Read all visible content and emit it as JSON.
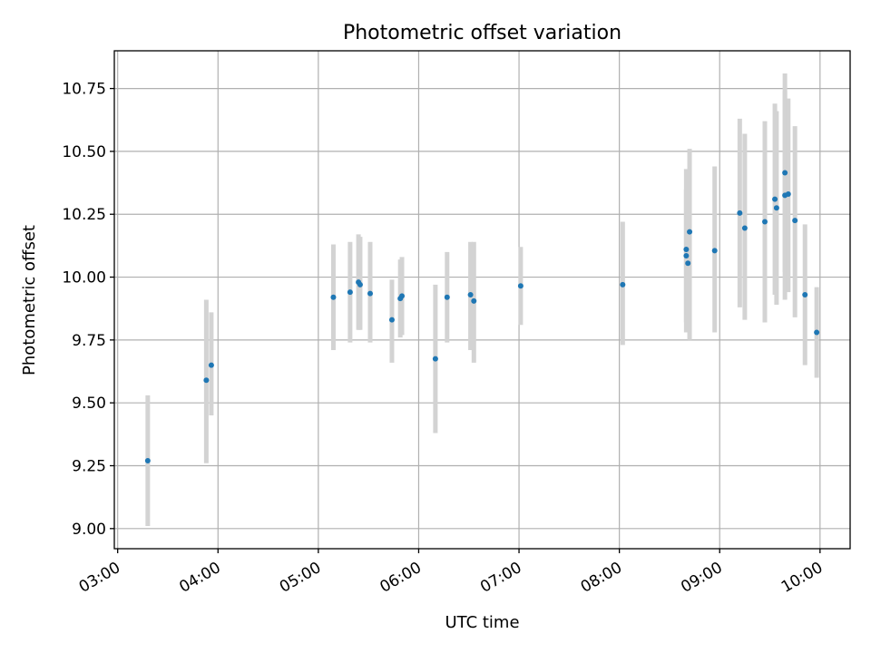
{
  "chart_data": {
    "type": "scatter",
    "title": "Photometric offset variation",
    "xlabel": "UTC time",
    "ylabel": "Photometric offset",
    "xlim": [
      "02:58",
      "10:18"
    ],
    "ylim": [
      8.92,
      10.9
    ],
    "x_ticks": [
      "03:00",
      "04:00",
      "05:00",
      "06:00",
      "07:00",
      "08:00",
      "09:00",
      "10:00"
    ],
    "y_ticks": [
      "9.00",
      "9.25",
      "9.50",
      "9.75",
      "10.00",
      "10.25",
      "10.50",
      "10.75"
    ],
    "grid": true,
    "colors": {
      "point": "#1f77b4",
      "errorbar": "#d3d3d3",
      "grid": "#b0b0b0"
    },
    "points": [
      {
        "x": "03:18",
        "y": 9.27,
        "ylow": 9.01,
        "yhigh": 9.53
      },
      {
        "x": "03:53",
        "y": 9.59,
        "ylow": 9.26,
        "yhigh": 9.91
      },
      {
        "x": "03:56",
        "y": 9.65,
        "ylow": 9.45,
        "yhigh": 9.86
      },
      {
        "x": "05:09",
        "y": 9.92,
        "ylow": 9.71,
        "yhigh": 10.13
      },
      {
        "x": "05:19",
        "y": 9.94,
        "ylow": 9.74,
        "yhigh": 10.14
      },
      {
        "x": "05:24",
        "y": 9.98,
        "ylow": 9.79,
        "yhigh": 10.17
      },
      {
        "x": "05:25",
        "y": 9.97,
        "ylow": 9.79,
        "yhigh": 10.16
      },
      {
        "x": "05:31",
        "y": 9.935,
        "ylow": 9.74,
        "yhigh": 10.14
      },
      {
        "x": "05:44",
        "y": 9.83,
        "ylow": 9.66,
        "yhigh": 9.99
      },
      {
        "x": "05:49",
        "y": 9.915,
        "ylow": 9.76,
        "yhigh": 10.07
      },
      {
        "x": "05:50",
        "y": 9.925,
        "ylow": 9.77,
        "yhigh": 10.08
      },
      {
        "x": "06:10",
        "y": 9.675,
        "ylow": 9.38,
        "yhigh": 9.97
      },
      {
        "x": "06:17",
        "y": 9.92,
        "ylow": 9.74,
        "yhigh": 10.1
      },
      {
        "x": "06:31",
        "y": 9.93,
        "ylow": 9.71,
        "yhigh": 10.14
      },
      {
        "x": "06:33",
        "y": 9.905,
        "ylow": 9.66,
        "yhigh": 10.14
      },
      {
        "x": "07:01",
        "y": 9.965,
        "ylow": 9.81,
        "yhigh": 10.12
      },
      {
        "x": "08:02",
        "y": 9.97,
        "ylow": 9.73,
        "yhigh": 10.22
      },
      {
        "x": "08:40",
        "y": 10.11,
        "ylow": 9.78,
        "yhigh": 10.43
      },
      {
        "x": "08:40",
        "y": 10.085,
        "ylow": 9.82,
        "yhigh": 10.35
      },
      {
        "x": "08:41",
        "y": 10.055,
        "ylow": 9.85,
        "yhigh": 10.26
      },
      {
        "x": "08:42",
        "y": 10.18,
        "ylow": 9.75,
        "yhigh": 10.51
      },
      {
        "x": "08:57",
        "y": 10.105,
        "ylow": 9.78,
        "yhigh": 10.44
      },
      {
        "x": "09:12",
        "y": 10.255,
        "ylow": 9.88,
        "yhigh": 10.63
      },
      {
        "x": "09:15",
        "y": 10.195,
        "ylow": 9.83,
        "yhigh": 10.57
      },
      {
        "x": "09:27",
        "y": 10.22,
        "ylow": 9.82,
        "yhigh": 10.62
      },
      {
        "x": "09:33",
        "y": 10.31,
        "ylow": 9.93,
        "yhigh": 10.69
      },
      {
        "x": "09:34",
        "y": 10.275,
        "ylow": 9.89,
        "yhigh": 10.66
      },
      {
        "x": "09:39",
        "y": 10.325,
        "ylow": 9.91,
        "yhigh": 10.74
      },
      {
        "x": "09:39",
        "y": 10.415,
        "ylow": 10.02,
        "yhigh": 10.81
      },
      {
        "x": "09:41",
        "y": 10.33,
        "ylow": 9.94,
        "yhigh": 10.71
      },
      {
        "x": "09:45",
        "y": 10.225,
        "ylow": 9.84,
        "yhigh": 10.6
      },
      {
        "x": "09:51",
        "y": 9.93,
        "ylow": 9.65,
        "yhigh": 10.21
      },
      {
        "x": "09:58",
        "y": 9.78,
        "ylow": 9.6,
        "yhigh": 9.96
      }
    ]
  }
}
